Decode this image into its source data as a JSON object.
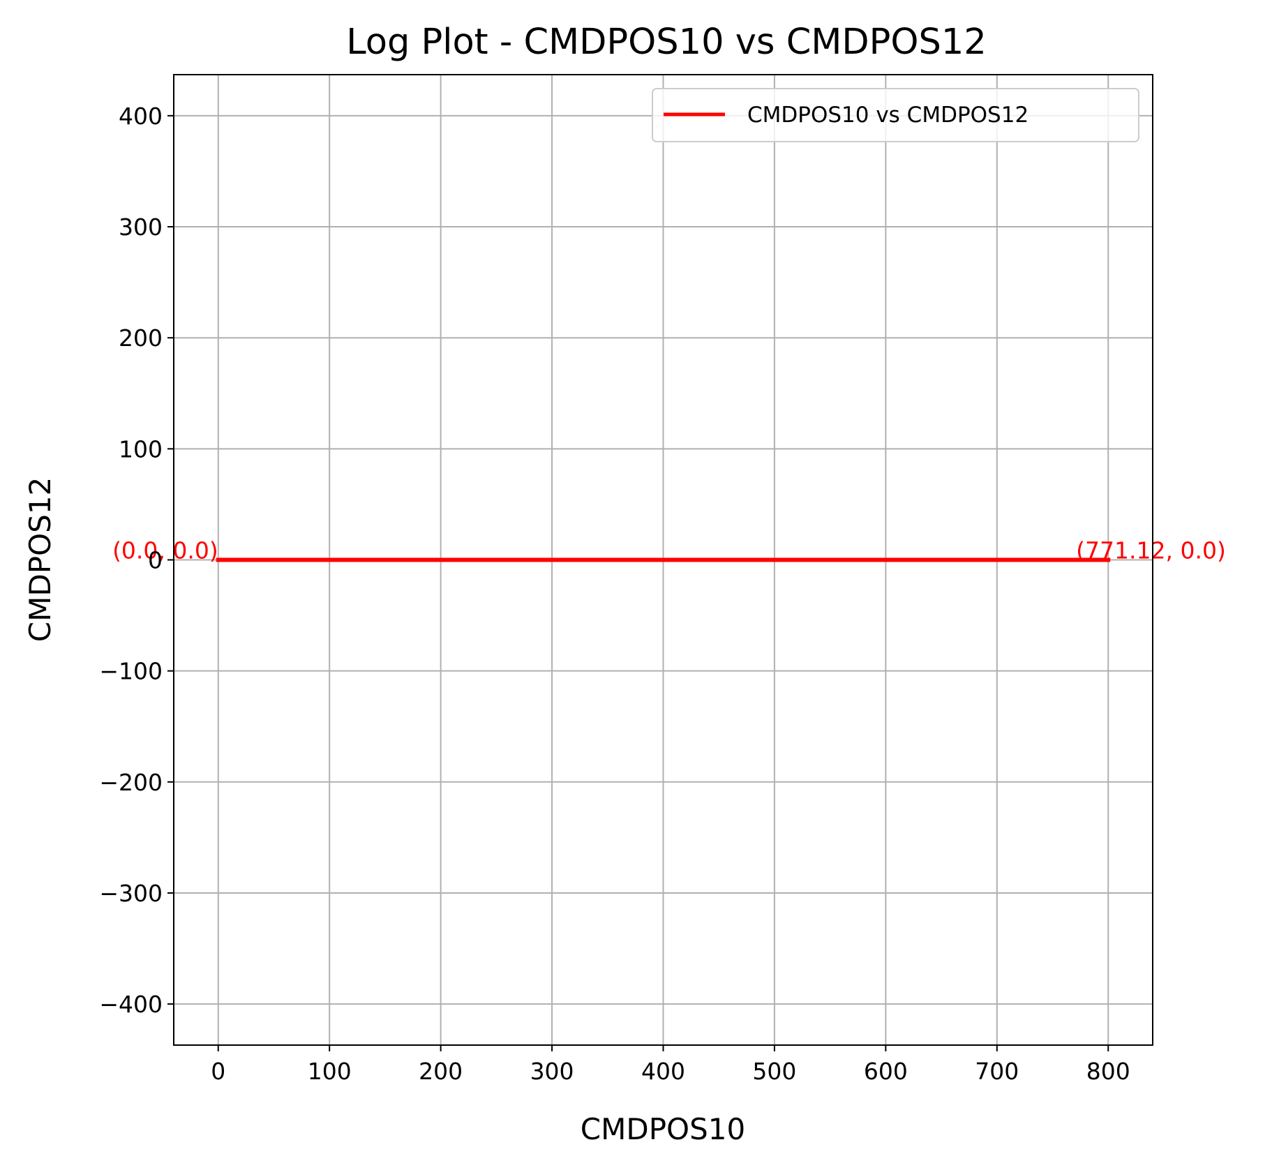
{
  "chart_data": {
    "type": "line",
    "title": "Log Plot - CMDPOS10 vs CMDPOS12",
    "xlabel": "CMDPOS10",
    "ylabel": "CMDPOS12",
    "xlim": [
      -40,
      840
    ],
    "ylim": [
      -437,
      437
    ],
    "x_ticks": [
      0,
      100,
      200,
      300,
      400,
      500,
      600,
      700,
      800
    ],
    "y_ticks": [
      -400,
      -300,
      -200,
      -100,
      0,
      100,
      200,
      300,
      400
    ],
    "x_tick_labels": [
      "0",
      "100",
      "200",
      "300",
      "400",
      "500",
      "600",
      "700",
      "800"
    ],
    "y_tick_labels": [
      "−400",
      "−300",
      "−200",
      "−100",
      "0",
      "100",
      "200",
      "300",
      "400"
    ],
    "grid": true,
    "legend_position": "top-right",
    "series": [
      {
        "name": "CMDPOS10 vs CMDPOS12",
        "color": "#ff0000",
        "x": [
          0.0,
          800.0
        ],
        "y": [
          0.0,
          0.0
        ]
      }
    ],
    "annotations": [
      {
        "text": "(0.0, 0.0)",
        "x": 0.0,
        "y": 0.0,
        "color": "#ff0000",
        "anchor": "right"
      },
      {
        "text": "(771.12, 0.0)",
        "x": 771.12,
        "y": 0.0,
        "color": "#ff0000",
        "anchor": "left"
      }
    ]
  }
}
